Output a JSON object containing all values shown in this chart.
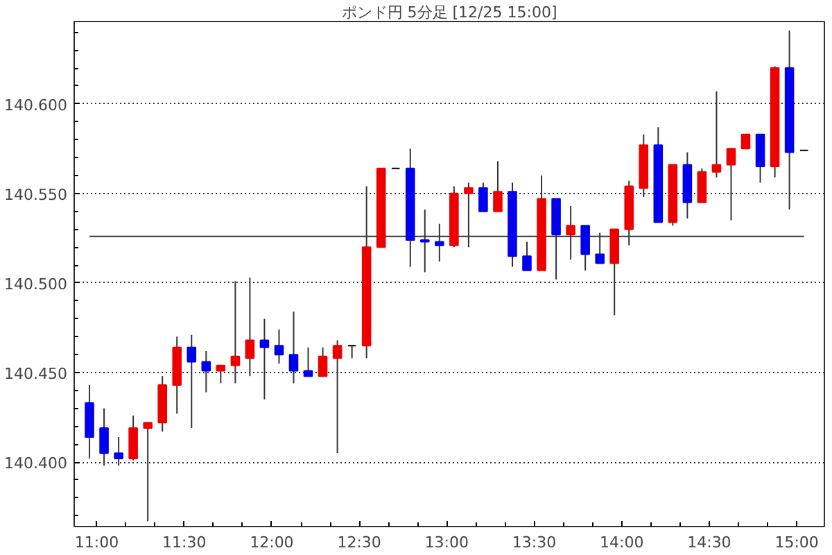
{
  "chart_data": {
    "type": "candlestick",
    "title": "ポンド円 5分足 [12/25 15:00]",
    "x": [
      10.9583,
      11.0417,
      11.125,
      11.2083,
      11.2917,
      11.375,
      11.4583,
      11.5417,
      11.625,
      11.7083,
      11.7917,
      11.875,
      11.9583,
      12.0417,
      12.125,
      12.2083,
      12.2917,
      12.375,
      12.4583,
      12.5417,
      12.625,
      12.7083,
      12.7917,
      12.875,
      12.9583,
      13.0417,
      13.125,
      13.2083,
      13.2917,
      13.375,
      13.4583,
      13.5417,
      13.625,
      13.7083,
      13.7917,
      13.875,
      13.9583,
      14.0417,
      14.125,
      14.2083,
      14.2917,
      14.375,
      14.4583,
      14.5417,
      14.625,
      14.7083,
      14.7917,
      14.875,
      14.9583,
      15.0417
    ],
    "ohlc": [
      [
        140.433,
        140.443,
        140.402,
        140.414
      ],
      [
        140.419,
        140.43,
        140.398,
        140.405
      ],
      [
        140.405,
        140.414,
        140.398,
        140.402
      ],
      [
        140.402,
        140.426,
        140.401,
        140.419
      ],
      [
        140.419,
        140.422,
        140.367,
        140.422
      ],
      [
        140.422,
        140.448,
        140.417,
        140.443
      ],
      [
        140.443,
        140.47,
        140.427,
        140.464
      ],
      [
        140.464,
        140.471,
        140.419,
        140.456
      ],
      [
        140.456,
        140.462,
        140.439,
        140.451
      ],
      [
        140.451,
        140.454,
        140.444,
        140.454
      ],
      [
        140.454,
        140.501,
        140.444,
        140.459
      ],
      [
        140.458,
        140.503,
        140.448,
        140.468
      ],
      [
        140.468,
        140.48,
        140.435,
        140.464
      ],
      [
        140.465,
        140.474,
        140.455,
        140.46
      ],
      [
        140.46,
        140.484,
        140.444,
        140.451
      ],
      [
        140.451,
        140.464,
        140.448,
        140.448
      ],
      [
        140.448,
        140.464,
        140.448,
        140.459
      ],
      [
        140.458,
        140.468,
        140.405,
        140.465
      ],
      [
        140.465,
        140.465,
        140.458,
        140.465
      ],
      [
        140.465,
        140.554,
        140.458,
        140.52
      ],
      [
        140.52,
        140.564,
        140.52,
        140.564
      ],
      [
        140.564,
        140.564,
        140.564,
        140.564
      ],
      [
        140.564,
        140.575,
        140.509,
        140.524
      ],
      [
        140.524,
        140.541,
        140.506,
        140.523
      ],
      [
        140.523,
        140.533,
        140.512,
        140.521
      ],
      [
        140.521,
        140.554,
        140.52,
        140.55
      ],
      [
        140.55,
        140.556,
        140.52,
        140.553
      ],
      [
        140.553,
        140.556,
        140.54,
        140.54
      ],
      [
        140.54,
        140.568,
        140.54,
        140.551
      ],
      [
        140.551,
        140.556,
        140.509,
        140.515
      ],
      [
        140.515,
        140.523,
        140.507,
        140.507
      ],
      [
        140.507,
        140.56,
        140.507,
        140.547
      ],
      [
        140.547,
        140.547,
        140.502,
        140.527
      ],
      [
        140.527,
        140.543,
        140.513,
        140.532
      ],
      [
        140.532,
        140.532,
        140.507,
        140.516
      ],
      [
        140.516,
        140.528,
        140.511,
        140.511
      ],
      [
        140.511,
        140.53,
        140.482,
        140.53
      ],
      [
        140.53,
        140.557,
        140.521,
        140.554
      ],
      [
        140.553,
        140.583,
        140.548,
        140.577
      ],
      [
        140.577,
        140.587,
        140.534,
        140.534
      ],
      [
        140.534,
        140.566,
        140.532,
        140.566
      ],
      [
        140.566,
        140.573,
        140.536,
        140.545
      ],
      [
        140.545,
        140.564,
        140.545,
        140.562
      ],
      [
        140.562,
        140.607,
        140.559,
        140.566
      ],
      [
        140.566,
        140.575,
        140.535,
        140.575
      ],
      [
        140.575,
        140.583,
        140.575,
        140.583
      ],
      [
        140.583,
        140.583,
        140.556,
        140.565
      ],
      [
        140.565,
        140.621,
        140.559,
        140.62
      ],
      [
        140.62,
        140.641,
        140.541,
        140.573
      ],
      [
        140.574,
        140.574,
        140.574,
        140.574
      ]
    ],
    "colors": [
      "#0000ee",
      "#0000ee",
      "#0000ee",
      "#ee0000",
      "#ee0000",
      "#ee0000",
      "#ee0000",
      "#0000ee",
      "#0000ee",
      "#ee0000",
      "#ee0000",
      "#ee0000",
      "#0000ee",
      "#0000ee",
      "#0000ee",
      "#0000ee",
      "#ee0000",
      "#ee0000",
      "#000000",
      "#ee0000",
      "#ee0000",
      "#000000",
      "#0000ee",
      "#0000ee",
      "#0000ee",
      "#ee0000",
      "#ee0000",
      "#0000ee",
      "#ee0000",
      "#0000ee",
      "#0000ee",
      "#ee0000",
      "#0000ee",
      "#ee0000",
      "#0000ee",
      "#0000ee",
      "#ee0000",
      "#ee0000",
      "#ee0000",
      "#0000ee",
      "#ee0000",
      "#0000ee",
      "#ee0000",
      "#ee0000",
      "#ee0000",
      "#ee0000",
      "#0000ee",
      "#ee0000",
      "#0000ee",
      "#000000"
    ],
    "xlim": [
      10.871,
      15.158
    ],
    "xticks": [
      {
        "value": 11,
        "label": "11:00"
      },
      {
        "value": 11.5,
        "label": "11:30"
      },
      {
        "value": 12,
        "label": "12:00"
      },
      {
        "value": 12.5,
        "label": "12:30"
      },
      {
        "value": 13,
        "label": "13:00"
      },
      {
        "value": 13.5,
        "label": "13:30"
      },
      {
        "value": 14,
        "label": "14:00"
      },
      {
        "value": 14.5,
        "label": "14:30"
      },
      {
        "value": 15,
        "label": "15:00"
      }
    ],
    "ylim": [
      140.364,
      140.646
    ],
    "yticks": [
      {
        "value": 140.4,
        "label": "140.400"
      },
      {
        "value": 140.45,
        "label": "140.450"
      },
      {
        "value": 140.5,
        "label": "140.500"
      },
      {
        "value": 140.55,
        "label": "140.550"
      },
      {
        "value": 140.6,
        "label": "140.600"
      }
    ],
    "grid": "y",
    "ref_lines": [
      {
        "axis": "y",
        "value": 140.526,
        "color": "#333333",
        "line_style": "solid"
      }
    ]
  }
}
